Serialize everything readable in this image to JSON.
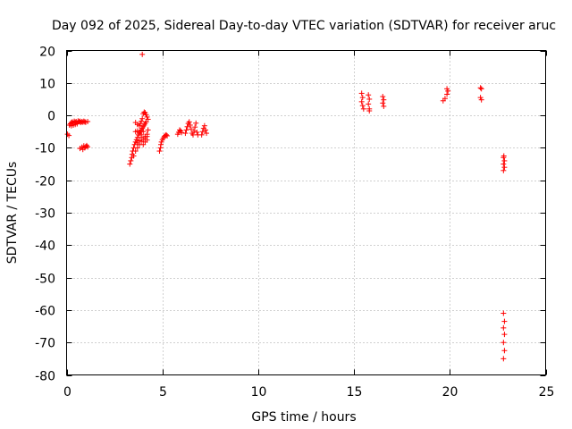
{
  "chart_data": {
    "type": "scatter",
    "title": "Day 092 of 2025, Sidereal Day-to-day VTEC variation (SDTVAR) for receiver aruc",
    "xlabel": "GPS time / hours",
    "ylabel": "SDTVAR / TECUs",
    "xlim": [
      0,
      25
    ],
    "ylim": [
      -80,
      20
    ],
    "xticks": [
      0,
      5,
      10,
      15,
      20,
      25
    ],
    "yticks": [
      20,
      10,
      0,
      -10,
      -20,
      -30,
      -40,
      -50,
      -60,
      -70,
      -80
    ],
    "xtick_labels": [
      "0",
      "5",
      "10",
      "15",
      "20",
      "25"
    ],
    "ytick_labels": [
      "20",
      "10",
      "0",
      "-10",
      "-20",
      "-30",
      "-40",
      "-50",
      "-60",
      "-70",
      "-80"
    ],
    "grid": true,
    "marker": "+",
    "color": "#ff0000",
    "series": [
      {
        "name": "aruc",
        "points": [
          [
            0.05,
            -5.8
          ],
          [
            0.12,
            -6.2
          ],
          [
            0.15,
            -3.0
          ],
          [
            0.2,
            -2.6
          ],
          [
            0.25,
            -2.2
          ],
          [
            0.3,
            -2.0
          ],
          [
            0.35,
            -2.4
          ],
          [
            0.4,
            -1.8
          ],
          [
            0.45,
            -2.1
          ],
          [
            0.5,
            -1.9
          ],
          [
            0.55,
            -2.3
          ],
          [
            0.6,
            -1.7
          ],
          [
            0.65,
            -2.0
          ],
          [
            0.7,
            -1.8
          ],
          [
            0.75,
            -2.2
          ],
          [
            0.8,
            -1.9
          ],
          [
            0.85,
            -2.1
          ],
          [
            0.9,
            -1.8
          ],
          [
            0.95,
            -2.0
          ],
          [
            1.0,
            -2.1
          ],
          [
            1.1,
            -1.9
          ],
          [
            0.25,
            -3.2
          ],
          [
            0.35,
            -3.0
          ],
          [
            0.45,
            -2.8
          ],
          [
            0.55,
            -2.6
          ],
          [
            0.7,
            -10.2
          ],
          [
            0.8,
            -9.8
          ],
          [
            0.85,
            -10.5
          ],
          [
            0.9,
            -9.4
          ],
          [
            0.95,
            -10.0
          ],
          [
            1.0,
            -9.6
          ],
          [
            1.05,
            -9.3
          ],
          [
            1.1,
            -9.7
          ],
          [
            3.3,
            -15.0
          ],
          [
            3.35,
            -14.0
          ],
          [
            3.4,
            -13.0
          ],
          [
            3.42,
            -12.0
          ],
          [
            3.45,
            -11.0
          ],
          [
            3.5,
            -10.0
          ],
          [
            3.55,
            -9.0
          ],
          [
            3.6,
            -8.2
          ],
          [
            3.65,
            -7.5
          ],
          [
            3.7,
            -6.8
          ],
          [
            3.75,
            -6.0
          ],
          [
            3.8,
            -5.5
          ],
          [
            3.85,
            -5.0
          ],
          [
            3.9,
            -4.5
          ],
          [
            3.95,
            -4.0
          ],
          [
            4.0,
            -3.5
          ],
          [
            4.05,
            -3.0
          ],
          [
            4.1,
            -2.5
          ],
          [
            4.15,
            -2.0
          ],
          [
            3.5,
            -12.5
          ],
          [
            3.6,
            -11.0
          ],
          [
            3.7,
            -10.0
          ],
          [
            3.8,
            -9.0
          ],
          [
            3.9,
            -8.0
          ],
          [
            4.0,
            -7.5
          ],
          [
            4.1,
            -7.0
          ],
          [
            4.2,
            -6.5
          ],
          [
            3.6,
            -2.2
          ],
          [
            3.7,
            -2.8
          ],
          [
            3.8,
            -3.2
          ],
          [
            3.85,
            -2.5
          ],
          [
            3.9,
            -1.8
          ],
          [
            3.95,
            -1.0
          ],
          [
            4.0,
            0.5
          ],
          [
            4.05,
            1.0
          ],
          [
            4.1,
            0.8
          ],
          [
            4.15,
            0.2
          ],
          [
            4.2,
            -0.5
          ],
          [
            4.25,
            -1.2
          ],
          [
            3.6,
            -5.0
          ],
          [
            3.7,
            -4.8
          ],
          [
            3.8,
            -5.5
          ],
          [
            3.9,
            -6.0
          ],
          [
            4.0,
            -5.0
          ],
          [
            4.1,
            -6.5
          ],
          [
            4.2,
            -5.8
          ],
          [
            4.25,
            -4.5
          ],
          [
            3.7,
            -8.5
          ],
          [
            3.8,
            -7.8
          ],
          [
            3.9,
            -6.8
          ],
          [
            4.0,
            -9.0
          ],
          [
            4.1,
            -8.2
          ],
          [
            4.2,
            -7.6
          ],
          [
            3.95,
            18.8
          ],
          [
            4.85,
            -11.0
          ],
          [
            4.9,
            -10.0
          ],
          [
            4.92,
            -9.0
          ],
          [
            4.95,
            -8.2
          ],
          [
            5.0,
            -7.5
          ],
          [
            5.05,
            -7.0
          ],
          [
            5.1,
            -6.5
          ],
          [
            5.15,
            -6.2
          ],
          [
            5.2,
            -6.0
          ],
          [
            5.25,
            -6.3
          ],
          [
            5.8,
            -5.8
          ],
          [
            5.85,
            -5.2
          ],
          [
            5.9,
            -4.5
          ],
          [
            5.95,
            -4.8
          ],
          [
            6.0,
            -5.3
          ],
          [
            6.2,
            -5.5
          ],
          [
            6.25,
            -4.5
          ],
          [
            6.3,
            -3.5
          ],
          [
            6.35,
            -2.5
          ],
          [
            6.4,
            -2.0
          ],
          [
            6.45,
            -3.0
          ],
          [
            6.5,
            -4.2
          ],
          [
            6.55,
            -5.5
          ],
          [
            6.6,
            -6.0
          ],
          [
            6.65,
            -4.8
          ],
          [
            6.7,
            -3.6
          ],
          [
            6.75,
            -2.4
          ],
          [
            6.8,
            -5.2
          ],
          [
            6.85,
            -6.0
          ],
          [
            7.05,
            -6.0
          ],
          [
            7.1,
            -5.0
          ],
          [
            7.15,
            -4.0
          ],
          [
            7.2,
            -3.2
          ],
          [
            7.25,
            -4.5
          ],
          [
            7.3,
            -5.5
          ],
          [
            15.4,
            6.8
          ],
          [
            15.45,
            5.5
          ],
          [
            15.4,
            4.2
          ],
          [
            15.45,
            3.0
          ],
          [
            15.5,
            2.0
          ],
          [
            15.75,
            6.3
          ],
          [
            15.8,
            5.0
          ],
          [
            15.75,
            3.5
          ],
          [
            15.8,
            2.0
          ],
          [
            15.8,
            1.4
          ],
          [
            16.5,
            5.8
          ],
          [
            16.55,
            4.8
          ],
          [
            16.5,
            3.8
          ],
          [
            16.55,
            2.8
          ],
          [
            19.65,
            4.5
          ],
          [
            19.75,
            5.2
          ],
          [
            19.85,
            6.5
          ],
          [
            19.9,
            7.5
          ],
          [
            19.85,
            8.2
          ],
          [
            21.6,
            8.5
          ],
          [
            21.65,
            8.2
          ],
          [
            21.6,
            5.5
          ],
          [
            21.65,
            4.8
          ],
          [
            22.8,
            -13.0
          ],
          [
            22.85,
            -14.0
          ],
          [
            22.8,
            -15.0
          ],
          [
            22.85,
            -16.0
          ],
          [
            22.8,
            -17.0
          ],
          [
            22.82,
            -12.5
          ],
          [
            22.8,
            -61.0
          ],
          [
            22.85,
            -63.5
          ],
          [
            22.8,
            -65.5
          ],
          [
            22.85,
            -67.5
          ],
          [
            22.8,
            -70.0
          ],
          [
            22.85,
            -72.5
          ],
          [
            22.8,
            -75.0
          ]
        ]
      }
    ]
  }
}
